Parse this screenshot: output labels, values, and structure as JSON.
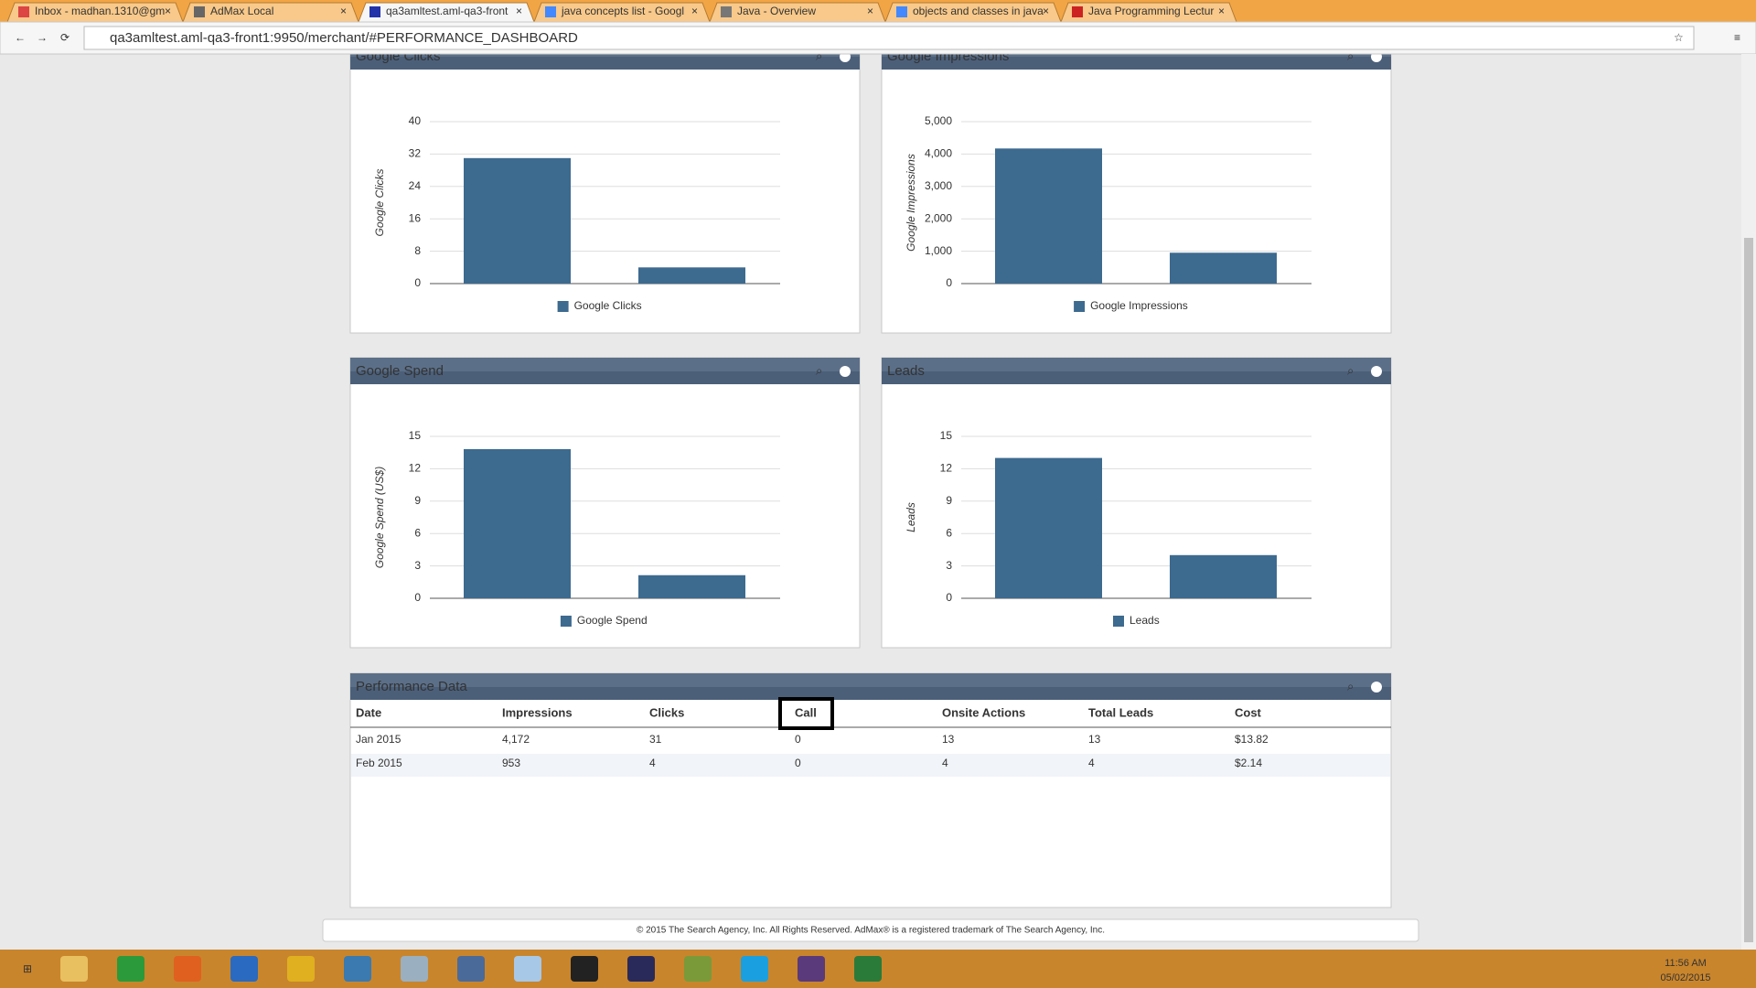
{
  "browser": {
    "tabs": [
      "Inbox - madhan.1310@gm",
      "AdMax Local",
      "qa3amltest.aml-qa3-front",
      "java concepts list - Googl",
      "Java - Overview",
      "objects and classes in java",
      "Java Programming Lectur"
    ],
    "active_tab": 2,
    "url": "qa3amltest.aml-qa3-front1:9950/merchant/#PERFORMANCE_DASHBOARD"
  },
  "chart_data": [
    {
      "type": "bar",
      "title": "Google Clicks",
      "ylabel": "Google Clicks",
      "series": [
        {
          "name": "Google Clicks",
          "color": "#3d6a8f",
          "values": [
            31,
            4
          ]
        }
      ],
      "ylim": [
        0,
        40
      ],
      "yticks": [
        0,
        8,
        16,
        24,
        32,
        40
      ],
      "grid": true
    },
    {
      "type": "bar",
      "title": "Google Impressions",
      "ylabel": "Google Impressions",
      "series": [
        {
          "name": "Google Impressions",
          "color": "#3d6a8f",
          "values": [
            4172,
            953
          ]
        }
      ],
      "ylim": [
        0,
        5000
      ],
      "yticks": [
        0,
        {
          "value": 1000,
          "label": "1,000"
        },
        {
          "value": 2000,
          "label": "2,000"
        },
        {
          "value": 3000,
          "label": "3,000"
        },
        {
          "value": 4000,
          "label": "4,000"
        },
        {
          "value": 5000,
          "label": "5,000"
        }
      ],
      "grid": true
    },
    {
      "type": "bar",
      "title": "Google Spend",
      "ylabel": "Google Spend (US$)",
      "series": [
        {
          "name": "Google Spend",
          "color": "#3d6a8f",
          "values": [
            13.82,
            2.14
          ]
        }
      ],
      "ylim": [
        0,
        15
      ],
      "yticks": [
        0,
        3,
        6,
        9,
        12,
        15
      ],
      "grid": true
    },
    {
      "type": "bar",
      "title": "Leads",
      "ylabel": "Leads",
      "series": [
        {
          "name": "Leads",
          "color": "#3d6a8f",
          "values": [
            13,
            4
          ]
        }
      ],
      "ylim": [
        0,
        15
      ],
      "yticks": [
        0,
        3,
        6,
        9,
        12,
        15
      ],
      "grid": true
    }
  ],
  "table": {
    "title": "Performance Data",
    "columns": [
      "Date",
      "Impressions",
      "Clicks",
      "Call",
      "Onsite Actions",
      "Total Leads",
      "Cost"
    ],
    "highlighted_column": 3,
    "rows": [
      [
        "Jan 2015",
        "4,172",
        "31",
        "0",
        "13",
        "13",
        "$13.82"
      ],
      [
        "Feb 2015",
        "953",
        "4",
        "0",
        "4",
        "4",
        "$2.14"
      ]
    ]
  },
  "footer": "© 2015 The Search Agency, Inc. All Rights Reserved. AdMax® is a registered trademark of The Search Agency, Inc.",
  "taskbar": {
    "time": "11:56 AM",
    "date": "05/02/2015"
  }
}
